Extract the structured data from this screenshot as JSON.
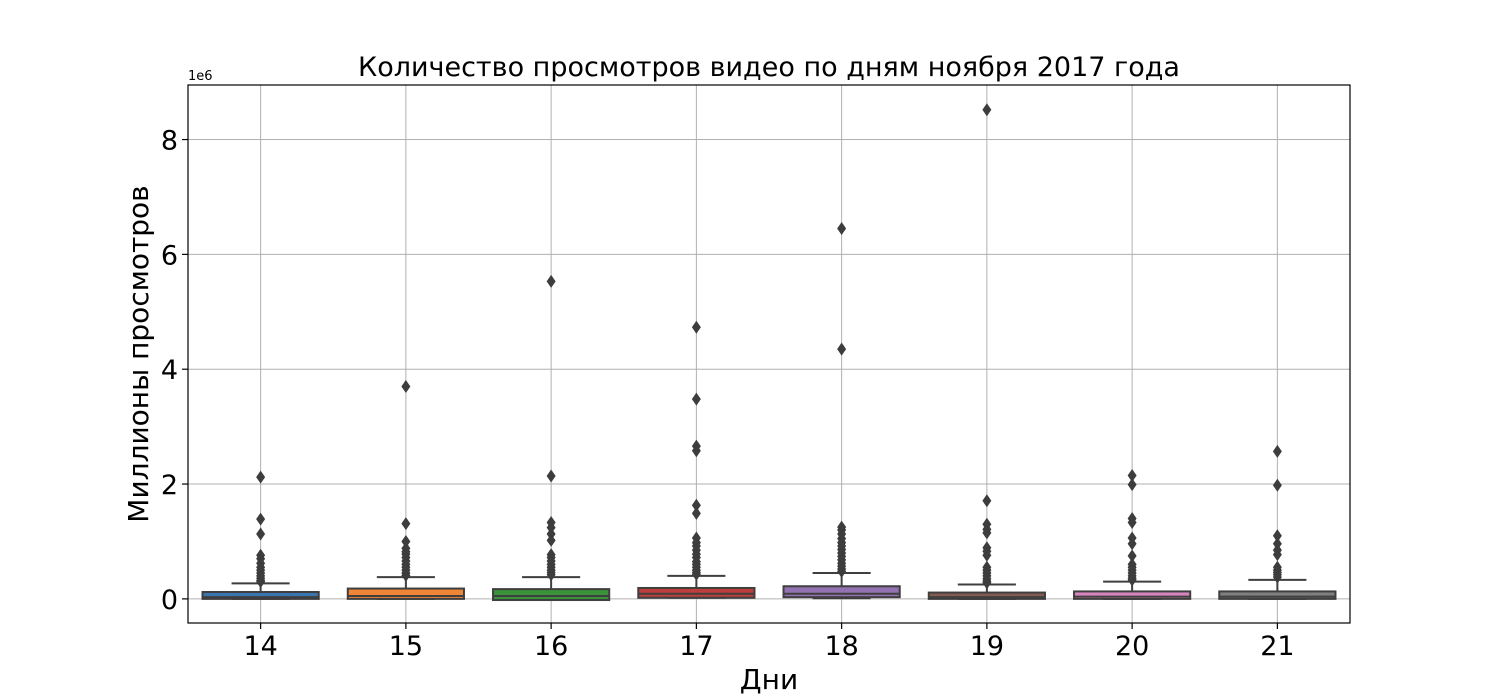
{
  "chart_data": {
    "type": "box",
    "title": "Количество просмотров видео по дням ноября 2017 года",
    "xlabel": "Дни",
    "ylabel": "Миллионы просмотров",
    "y_offset_label": "1e6",
    "ylim": [
      -0.42,
      8.95
    ],
    "yticks": [
      0,
      2,
      4,
      6,
      8
    ],
    "grid": true,
    "categories": [
      "14",
      "15",
      "16",
      "17",
      "18",
      "19",
      "20",
      "21"
    ],
    "boxes": [
      {
        "category": "14",
        "color": "#3b75af",
        "q1": 0.0,
        "median": 0.03,
        "q3": 0.12,
        "whisker_low": 0.0,
        "whisker_high": 0.27,
        "fliers": [
          2.12,
          1.39,
          1.13,
          0.76,
          0.7,
          0.62,
          0.55,
          0.5,
          0.45,
          0.4,
          0.36,
          0.32,
          0.3
        ]
      },
      {
        "category": "15",
        "color": "#ef8636",
        "q1": 0.0,
        "median": 0.05,
        "q3": 0.18,
        "whisker_low": 0.0,
        "whisker_high": 0.38,
        "fliers": [
          3.7,
          1.31,
          1.0,
          0.88,
          0.82,
          0.78,
          0.72,
          0.66,
          0.6,
          0.55,
          0.5,
          0.45,
          0.41
        ]
      },
      {
        "category": "16",
        "color": "#3a923a",
        "q1": -0.02,
        "median": 0.05,
        "q3": 0.17,
        "whisker_low": -0.02,
        "whisker_high": 0.38,
        "fliers": [
          5.53,
          2.14,
          1.33,
          1.24,
          1.13,
          1.02,
          0.77,
          0.72,
          0.66,
          0.6,
          0.55,
          0.5,
          0.46,
          0.42
        ]
      },
      {
        "category": "17",
        "color": "#c03d3e",
        "q1": 0.02,
        "median": 0.09,
        "q3": 0.19,
        "whisker_low": 0.02,
        "whisker_high": 0.4,
        "fliers": [
          4.73,
          3.48,
          2.66,
          2.58,
          1.63,
          1.49,
          1.06,
          0.98,
          0.92,
          0.85,
          0.78,
          0.72,
          0.65,
          0.6,
          0.55,
          0.5,
          0.46,
          0.43
        ]
      },
      {
        "category": "18",
        "color": "#9372b2",
        "q1": 0.03,
        "median": 0.09,
        "q3": 0.22,
        "whisker_low": 0.01,
        "whisker_high": 0.45,
        "fliers": [
          6.45,
          4.35,
          1.25,
          1.2,
          1.13,
          1.05,
          0.98,
          0.92,
          0.86,
          0.8,
          0.74,
          0.68,
          0.62,
          0.57,
          0.52,
          0.48
        ]
      },
      {
        "category": "19",
        "color": "#845b53",
        "q1": 0.0,
        "median": 0.03,
        "q3": 0.11,
        "whisker_low": 0.0,
        "whisker_high": 0.25,
        "fliers": [
          8.52,
          1.71,
          1.3,
          1.21,
          1.15,
          0.89,
          0.83,
          0.76,
          0.55,
          0.5,
          0.45,
          0.4,
          0.35,
          0.31,
          0.28
        ]
      },
      {
        "category": "20",
        "color": "#d684bd",
        "q1": 0.0,
        "median": 0.04,
        "q3": 0.13,
        "whisker_low": 0.0,
        "whisker_high": 0.3,
        "fliers": [
          2.15,
          1.99,
          1.4,
          1.33,
          1.06,
          0.96,
          0.75,
          0.6,
          0.55,
          0.5,
          0.45,
          0.4,
          0.36,
          0.33
        ]
      },
      {
        "category": "21",
        "color": "#7f7f7f",
        "q1": 0.0,
        "median": 0.04,
        "q3": 0.13,
        "whisker_low": 0.0,
        "whisker_high": 0.33,
        "fliers": [
          2.57,
          1.98,
          1.1,
          0.96,
          0.85,
          0.77,
          0.55,
          0.5,
          0.46,
          0.42,
          0.38
        ]
      }
    ]
  }
}
